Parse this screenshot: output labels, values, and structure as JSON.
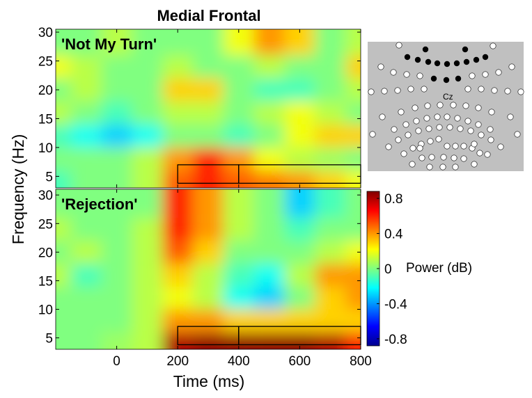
{
  "chart_data": {
    "type": "heatmap",
    "title": "Medial Frontal",
    "x_label": "Time (ms)",
    "y_label": "Frequency (Hz)",
    "xlim": [
      -200,
      800
    ],
    "xticks": [
      0,
      200,
      400,
      600,
      800
    ],
    "times": [
      -200,
      -100,
      0,
      100,
      200,
      300,
      400,
      500,
      600,
      700,
      800
    ],
    "freqs": [
      4,
      8,
      12,
      16,
      20,
      24,
      28
    ],
    "colorbar": {
      "label": "Power (dB)",
      "clim": [
        -0.88,
        0.88
      ],
      "ticks": [
        -0.8,
        -0.4,
        0,
        0.4,
        0.8
      ]
    },
    "electrode_label": "Cz",
    "panels": [
      {
        "label": "'Not My Turn'",
        "ylim": [
          3,
          30.5
        ],
        "yticks": [
          5,
          10,
          15,
          20,
          25,
          30
        ],
        "roi_boxes": [
          {
            "x": [
              200,
              400
            ],
            "y": [
              3.8,
              7
            ]
          },
          {
            "x": [
              400,
              800
            ],
            "y": [
              3.8,
              7
            ]
          }
        ],
        "values": [
          [
            -0.1,
            0,
            0,
            0.1,
            0.5,
            0.6,
            0.5,
            0.45,
            0.4,
            0.3,
            0.2
          ],
          [
            0,
            0,
            0,
            0.1,
            0.4,
            0.6,
            0.4,
            0.2,
            0.1,
            0.05,
            0
          ],
          [
            -0.1,
            -0.2,
            -0.3,
            -0.2,
            0,
            0,
            -0.1,
            0,
            0.2,
            0.3,
            0.3
          ],
          [
            0.1,
            0,
            -0.1,
            0,
            0.1,
            0.1,
            0,
            0.1,
            0.2,
            0.1,
            0
          ],
          [
            0,
            0.1,
            0,
            0,
            0.3,
            0.3,
            0,
            -0.1,
            -0.1,
            0,
            0.1
          ],
          [
            0.2,
            0.1,
            0,
            0,
            0.1,
            0,
            0,
            0.1,
            0,
            0,
            0.3
          ],
          [
            0,
            0,
            0.1,
            0,
            0,
            0,
            0.2,
            0.4,
            0.3,
            0,
            0.1
          ]
        ]
      },
      {
        "label": "'Rejection'",
        "ylim": [
          3,
          31
        ],
        "yticks": [
          5,
          10,
          15,
          20,
          25,
          30
        ],
        "roi_boxes": [
          {
            "x": [
              200,
              400
            ],
            "y": [
              3.8,
              7
            ]
          },
          {
            "x": [
              400,
              800
            ],
            "y": [
              3.8,
              7
            ]
          }
        ],
        "values": [
          [
            0,
            0,
            0.05,
            0.1,
            0.8,
            0.85,
            0.85,
            0.85,
            0.85,
            0.8,
            0.6
          ],
          [
            0,
            0,
            0,
            0.1,
            0.4,
            0.4,
            0.3,
            0.3,
            0.3,
            0.3,
            0.3
          ],
          [
            0,
            0,
            0,
            0.1,
            0.2,
            0.1,
            -0.2,
            -0.3,
            0,
            0.3,
            0.4
          ],
          [
            0.1,
            -0.1,
            0,
            0.1,
            0.3,
            0.1,
            -0.1,
            -0.2,
            0.1,
            0.4,
            0.4
          ],
          [
            0,
            0.1,
            0,
            0.1,
            0.5,
            0.3,
            0,
            0,
            0,
            0.1,
            0.2
          ],
          [
            0.1,
            0,
            0,
            0.1,
            0.6,
            0.4,
            0.1,
            0,
            -0.1,
            0,
            0
          ],
          [
            0,
            0,
            0,
            0,
            0.6,
            0.4,
            0.1,
            0,
            -0.3,
            -0.1,
            0
          ]
        ]
      }
    ]
  }
}
